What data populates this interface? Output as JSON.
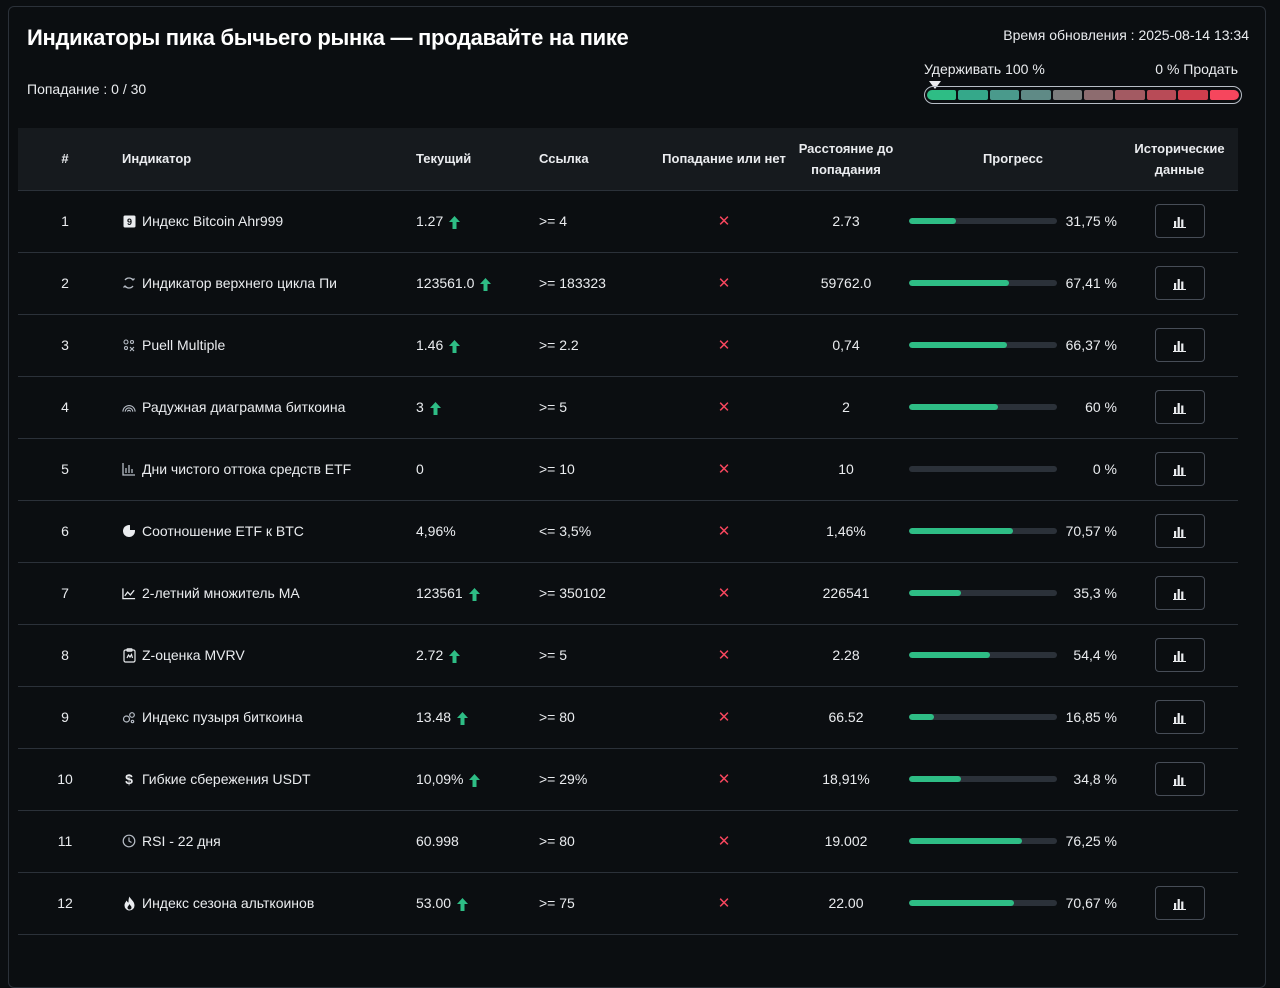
{
  "header": {
    "title": "Индикаторы пика бычьего рынка — продавайте на пике",
    "hits": "Попадание : 0 / 30",
    "update_time": "Время обновления : 2025-08-14 13:34"
  },
  "scale": {
    "hold_label": "Удерживать 100 %",
    "sell_label": "0 % Продать",
    "marker_position": 0,
    "colors": [
      "#2ebd85",
      "#35a88a",
      "#4a9a8c",
      "#5f8a86",
      "#7b7c7c",
      "#8d6c6f",
      "#a35a62",
      "#b84b57",
      "#cf3e4d",
      "#f6465d"
    ]
  },
  "table": {
    "headers": {
      "num": "#",
      "indicator": "Индикатор",
      "current": "Текущий",
      "reference": "Ссылка",
      "hit": "Попадание или нет",
      "distance": "Расстояние до попадания",
      "progress": "Прогресс",
      "history": "Исторические данные"
    },
    "rows": [
      {
        "num": "1",
        "icon": "number-badge-icon",
        "name": "Индекс Bitcoin Ahr999",
        "current": "1.27",
        "up": true,
        "reference": ">= 4",
        "hit": "✕",
        "distance": "2.73",
        "progress": 31.75,
        "progress_label": "31,75 %",
        "history": true
      },
      {
        "num": "2",
        "icon": "cycle-icon",
        "name": "Индикатор верхнего цикла Пи",
        "current": "123561.0",
        "up": true,
        "reference": ">= 183323",
        "hit": "✕",
        "distance": "59762.0",
        "progress": 67.41,
        "progress_label": "67,41 %",
        "history": true
      },
      {
        "num": "3",
        "icon": "puell-icon",
        "name": "Puell Multiple",
        "current": "1.46",
        "up": true,
        "reference": ">= 2.2",
        "hit": "✕",
        "distance": "0,74",
        "progress": 66.37,
        "progress_label": "66,37 %",
        "history": true
      },
      {
        "num": "4",
        "icon": "rainbow-icon",
        "name": "Радужная диаграмма биткоина",
        "current": "3",
        "up": true,
        "reference": ">= 5",
        "hit": "✕",
        "distance": "2",
        "progress": 60,
        "progress_label": "60 %",
        "history": true
      },
      {
        "num": "5",
        "icon": "bar-chart-icon",
        "name": "Дни чистого оттока средств ETF",
        "current": "0",
        "up": false,
        "reference": ">= 10",
        "hit": "✕",
        "distance": "10",
        "progress": 0,
        "progress_label": "0 %",
        "history": true
      },
      {
        "num": "6",
        "icon": "pie-chart-icon",
        "name": "Соотношение ETF к BTC",
        "current": "4,96%",
        "up": false,
        "reference": "<= 3,5%",
        "hit": "✕",
        "distance": "1,46%",
        "progress": 70.57,
        "progress_label": "70,57 %",
        "history": true
      },
      {
        "num": "7",
        "icon": "trend-line-icon",
        "name": "2-летний множитель MA",
        "current": "123561",
        "up": true,
        "reference": ">= 350102",
        "hit": "✕",
        "distance": "226541",
        "progress": 35.3,
        "progress_label": "35,3 %",
        "history": true
      },
      {
        "num": "8",
        "icon": "clipboard-icon",
        "name": "Z-оценка MVRV",
        "current": "2.72",
        "up": true,
        "reference": ">= 5",
        "hit": "✕",
        "distance": "2.28",
        "progress": 54.4,
        "progress_label": "54,4 %",
        "history": true
      },
      {
        "num": "9",
        "icon": "bubbles-icon",
        "name": "Индекс пузыря биткоина",
        "current": "13.48",
        "up": true,
        "reference": ">= 80",
        "hit": "✕",
        "distance": "66.52",
        "progress": 16.85,
        "progress_label": "16,85 %",
        "history": true
      },
      {
        "num": "10",
        "icon": "dollar-icon",
        "name": "Гибкие сбережения USDT",
        "current": "10,09%",
        "up": true,
        "reference": ">= 29%",
        "hit": "✕",
        "distance": "18,91%",
        "progress": 34.8,
        "progress_label": "34,8 %",
        "history": true
      },
      {
        "num": "11",
        "icon": "clock-icon",
        "name": "RSI - 22 дня",
        "current": "60.998",
        "up": false,
        "reference": ">= 80",
        "hit": "✕",
        "distance": "19.002",
        "progress": 76.25,
        "progress_label": "76,25 %",
        "history": false
      },
      {
        "num": "12",
        "icon": "fire-icon",
        "name": "Индекс сезона альткоинов",
        "current": "53.00",
        "up": true,
        "reference": ">= 75",
        "hit": "✕",
        "distance": "22.00",
        "progress": 70.67,
        "progress_label": "70,67 %",
        "history": true
      }
    ]
  }
}
